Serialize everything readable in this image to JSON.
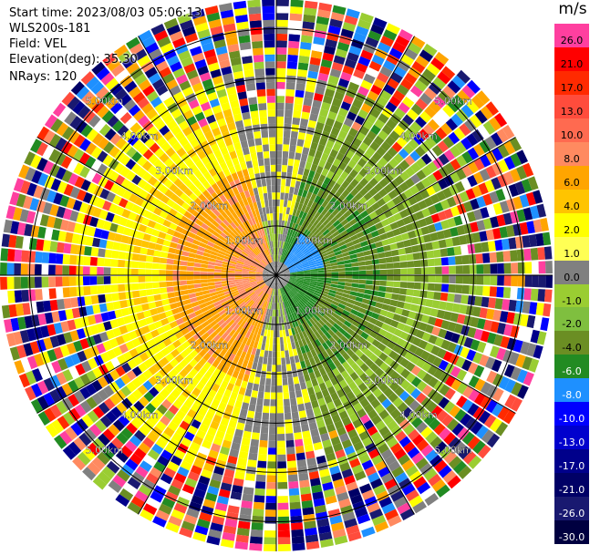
{
  "info": {
    "start_time": "Start time: 2023/08/03 05:06:13",
    "instrument": "WLS200s-181",
    "field": "Field: VEL",
    "elevation": "Elevation(deg): 35.30",
    "nrays": "NRays: 120"
  },
  "colorbar": {
    "unit": "m/s",
    "entries": [
      {
        "label": "26.0",
        "color": "#ff3f9f",
        "text": "#000"
      },
      {
        "label": "21.0",
        "color": "#ff0000",
        "text": "#000"
      },
      {
        "label": "17.0",
        "color": "#ff2a00",
        "text": "#000"
      },
      {
        "label": "13.0",
        "color": "#ff4c3c",
        "text": "#000"
      },
      {
        "label": "10.0",
        "color": "#ff6a50",
        "text": "#000"
      },
      {
        "label": "8.0",
        "color": "#ff8a60",
        "text": "#000"
      },
      {
        "label": "6.0",
        "color": "#ffa500",
        "text": "#000"
      },
      {
        "label": "4.0",
        "color": "#ffc400",
        "text": "#000"
      },
      {
        "label": "2.0",
        "color": "#ffff00",
        "text": "#000"
      },
      {
        "label": "1.0",
        "color": "#ffff55",
        "text": "#000"
      },
      {
        "label": "0.0",
        "color": "#808080",
        "text": "#000"
      },
      {
        "label": "-1.0",
        "color": "#9acd32",
        "text": "#000"
      },
      {
        "label": "-2.0",
        "color": "#7fbf3f",
        "text": "#000"
      },
      {
        "label": "-4.0",
        "color": "#6b8e23",
        "text": "#000"
      },
      {
        "label": "-6.0",
        "color": "#228b22",
        "text": "#fff"
      },
      {
        "label": "-8.0",
        "color": "#1e90ff",
        "text": "#fff"
      },
      {
        "label": "-10.0",
        "color": "#0000ff",
        "text": "#fff"
      },
      {
        "label": "-13.0",
        "color": "#0000cd",
        "text": "#fff"
      },
      {
        "label": "-17.0",
        "color": "#00008b",
        "text": "#fff"
      },
      {
        "label": "-21.0",
        "color": "#000066",
        "text": "#fff"
      },
      {
        "label": "-26.0",
        "color": "#191970",
        "text": "#fff"
      },
      {
        "label": "-30.0",
        "color": "#000040",
        "text": "#fff"
      }
    ]
  },
  "range_labels": {
    "r1": "1.00km",
    "r2": "2.00km",
    "r3": "3.00km",
    "r4": "4.00km",
    "r5": "5.00km"
  },
  "noise_palette": [
    "#ff3f9f",
    "#ff0000",
    "#ff2a00",
    "#0000ff",
    "#00008b",
    "#191970",
    "#ffff00",
    "#ff8a60",
    "#228b22",
    "#1e90ff",
    "#ffa500",
    "#808080",
    "#6b8e23",
    "#ffffff",
    "#ff4c3c",
    "#9acd32",
    "#000066"
  ]
}
